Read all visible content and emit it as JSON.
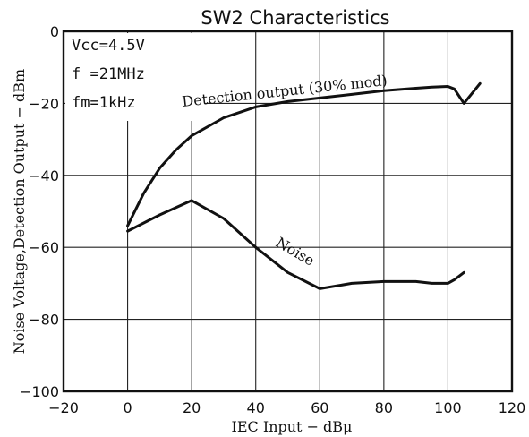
{
  "chart_data": {
    "type": "line",
    "title": "SW2 Characteristics",
    "xlabel": "IEC Input − dBμ",
    "ylabel": "Noise Voltage,Detection Output − dBm",
    "xlim": [
      -20,
      120
    ],
    "ylim": [
      -100,
      0
    ],
    "x_ticks": [
      "−20",
      "0",
      "20",
      "40",
      "60",
      "80",
      "100",
      "120"
    ],
    "y_ticks": [
      "0",
      "−20",
      "−40",
      "−60",
      "−80",
      "−100"
    ],
    "x_tick_values": [
      -20,
      0,
      20,
      40,
      60,
      80,
      100,
      120
    ],
    "y_tick_values": [
      0,
      -20,
      -40,
      -60,
      -80,
      -100
    ],
    "grid": true,
    "conditions": [
      "Vcc=4.5V",
      "f =21MHz",
      "fm=1kHz"
    ],
    "series": [
      {
        "name": "Detection output (30% mod)",
        "x": [
          0,
          5,
          10,
          15,
          20,
          30,
          40,
          50,
          60,
          70,
          80,
          90,
          95,
          100,
          102,
          105,
          110
        ],
        "y": [
          -54,
          -45,
          -38,
          -33,
          -29,
          -24,
          -21,
          -19.5,
          -18.5,
          -17.5,
          -16.5,
          -15.8,
          -15.5,
          -15.3,
          -16,
          -20,
          -14.5
        ]
      },
      {
        "name": "Noise",
        "x": [
          0,
          10,
          20,
          30,
          40,
          50,
          60,
          70,
          80,
          90,
          95,
          100,
          102,
          105
        ],
        "y": [
          -55.5,
          -51,
          -47,
          -52,
          -60,
          -67,
          -71.5,
          -70,
          -69.5,
          -69.5,
          -70,
          -70,
          -69,
          -67
        ]
      }
    ]
  }
}
